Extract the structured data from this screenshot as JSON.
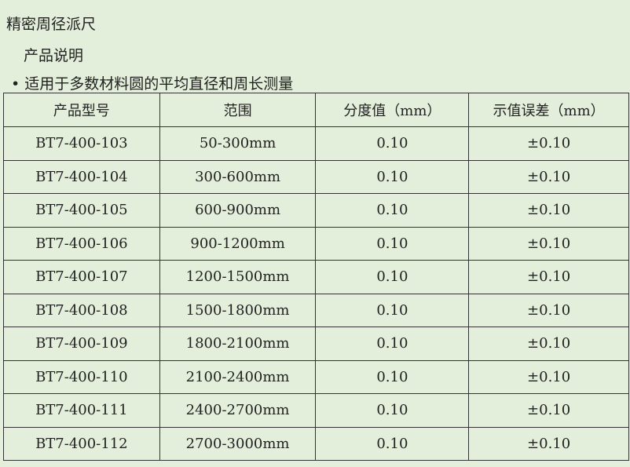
{
  "title": "精密周径派尺",
  "subtitle": "产品说明",
  "bullet": "适用于多数材料圆的平均直径和周长测量",
  "table": {
    "headers": [
      "产品型号",
      "范围",
      "分度值（mm）",
      "示值误差（mm）"
    ],
    "rows": [
      [
        "BT7-400-103",
        "50-300mm",
        "0.10",
        "±0.10"
      ],
      [
        "BT7-400-104",
        "300-600mm",
        "0.10",
        "±0.10"
      ],
      [
        "BT7-400-105",
        "600-900mm",
        "0.10",
        "±0.10"
      ],
      [
        "BT7-400-106",
        "900-1200mm",
        "0.10",
        "±0.10"
      ],
      [
        "BT7-400-107",
        "1200-1500mm",
        "0.10",
        "±0.10"
      ],
      [
        "BT7-400-108",
        "1500-1800mm",
        "0.10",
        "±0.10"
      ],
      [
        "BT7-400-109",
        "1800-2100mm",
        "0.10",
        "±0.10"
      ],
      [
        "BT7-400-110",
        "2100-2400mm",
        "0.10",
        "±0.10"
      ],
      [
        "BT7-400-111",
        "2400-2700mm",
        "0.10",
        "±0.10"
      ],
      [
        "BT7-400-112",
        "2700-3000mm",
        "0.10",
        "±0.10"
      ]
    ]
  },
  "colors": {
    "background": "#e3eedb",
    "border": "#333333"
  }
}
